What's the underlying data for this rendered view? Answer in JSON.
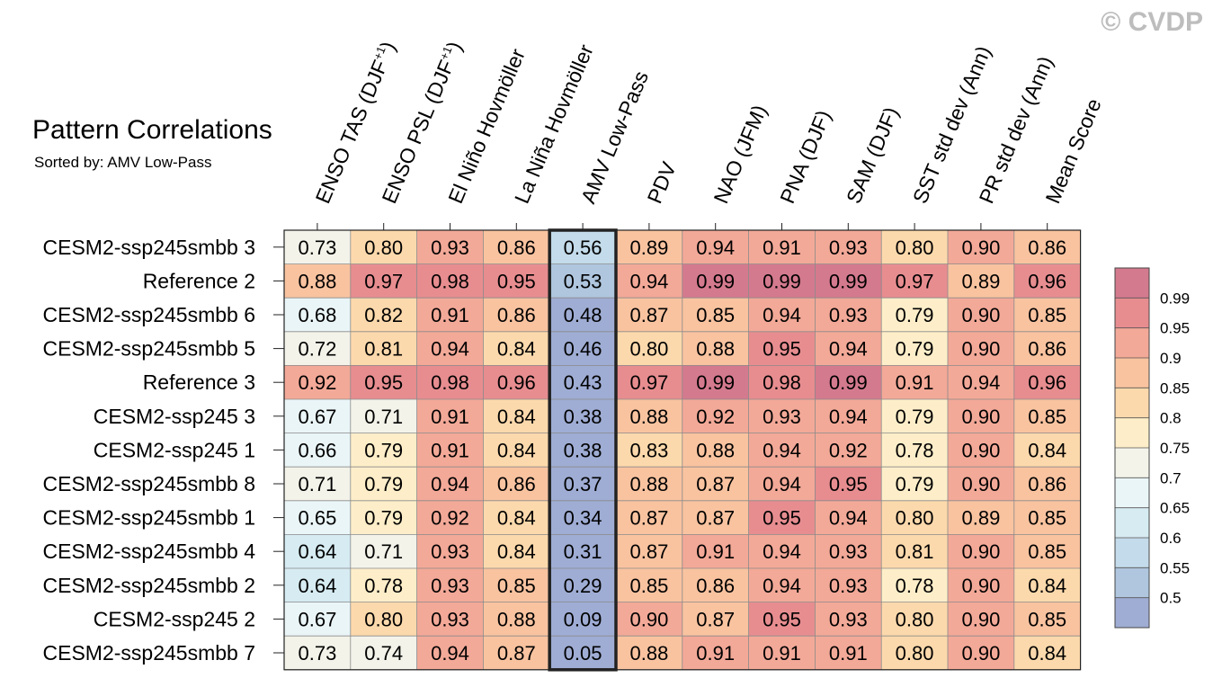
{
  "watermark": "© CVDP",
  "chart_data": {
    "type": "heatmap",
    "title": "Pattern Correlations",
    "subtitle": "Sorted by: AMV Low-Pass",
    "highlighted_column": "AMV Low-Pass",
    "columns": [
      {
        "label": "ENSO TAS (DJF",
        "sup": "+1",
        "close": ")"
      },
      {
        "label": "ENSO PSL (DJF",
        "sup": "+1",
        "close": ")"
      },
      {
        "label": "El Niño Hovmöller",
        "sup": "",
        "close": ""
      },
      {
        "label": "La Niña Hovmöller",
        "sup": "",
        "close": ""
      },
      {
        "label": "AMV Low-Pass",
        "sup": "",
        "close": ""
      },
      {
        "label": "PDV",
        "sup": "",
        "close": ""
      },
      {
        "label": "NAO (JFM)",
        "sup": "",
        "close": ""
      },
      {
        "label": "PNA (DJF)",
        "sup": "",
        "close": ""
      },
      {
        "label": "SAM (DJF)",
        "sup": "",
        "close": ""
      },
      {
        "label": "SST std dev (Ann)",
        "sup": "",
        "close": ""
      },
      {
        "label": "PR std dev (Ann)",
        "sup": "",
        "close": ""
      },
      {
        "label": "Mean Score",
        "sup": "",
        "close": ""
      }
    ],
    "rows": [
      "CESM2-ssp245smbb 3",
      "Reference 2",
      "CESM2-ssp245smbb 6",
      "CESM2-ssp245smbb 5",
      "Reference 3",
      "CESM2-ssp245 3",
      "CESM2-ssp245 1",
      "CESM2-ssp245smbb 8",
      "CESM2-ssp245smbb 1",
      "CESM2-ssp245smbb 4",
      "CESM2-ssp245smbb 2",
      "CESM2-ssp245 2",
      "CESM2-ssp245smbb 7"
    ],
    "values": [
      [
        0.73,
        0.8,
        0.93,
        0.86,
        0.56,
        0.89,
        0.94,
        0.91,
        0.93,
        0.8,
        0.9,
        0.86
      ],
      [
        0.88,
        0.97,
        0.98,
        0.95,
        0.53,
        0.94,
        0.99,
        0.99,
        0.99,
        0.97,
        0.89,
        0.96
      ],
      [
        0.68,
        0.82,
        0.91,
        0.86,
        0.48,
        0.87,
        0.85,
        0.94,
        0.93,
        0.79,
        0.9,
        0.85
      ],
      [
        0.72,
        0.81,
        0.94,
        0.84,
        0.46,
        0.8,
        0.88,
        0.95,
        0.94,
        0.79,
        0.9,
        0.86
      ],
      [
        0.92,
        0.95,
        0.98,
        0.96,
        0.43,
        0.97,
        0.99,
        0.98,
        0.99,
        0.91,
        0.94,
        0.96
      ],
      [
        0.67,
        0.71,
        0.91,
        0.84,
        0.38,
        0.88,
        0.92,
        0.93,
        0.94,
        0.79,
        0.9,
        0.85
      ],
      [
        0.66,
        0.79,
        0.91,
        0.84,
        0.38,
        0.83,
        0.88,
        0.94,
        0.92,
        0.78,
        0.9,
        0.84
      ],
      [
        0.71,
        0.79,
        0.94,
        0.86,
        0.37,
        0.88,
        0.87,
        0.94,
        0.95,
        0.79,
        0.9,
        0.86
      ],
      [
        0.65,
        0.79,
        0.92,
        0.84,
        0.34,
        0.87,
        0.87,
        0.95,
        0.94,
        0.8,
        0.89,
        0.85
      ],
      [
        0.64,
        0.71,
        0.93,
        0.84,
        0.31,
        0.87,
        0.91,
        0.94,
        0.93,
        0.81,
        0.9,
        0.85
      ],
      [
        0.64,
        0.78,
        0.93,
        0.85,
        0.29,
        0.85,
        0.86,
        0.94,
        0.93,
        0.78,
        0.9,
        0.84
      ],
      [
        0.67,
        0.8,
        0.93,
        0.88,
        0.09,
        0.9,
        0.87,
        0.95,
        0.93,
        0.8,
        0.9,
        0.85
      ],
      [
        0.73,
        0.74,
        0.94,
        0.87,
        0.05,
        0.88,
        0.91,
        0.91,
        0.91,
        0.8,
        0.9,
        0.84
      ]
    ],
    "colorbar": {
      "boundaries": [
        0.5,
        0.55,
        0.6,
        0.65,
        0.7,
        0.75,
        0.8,
        0.85,
        0.9,
        0.95,
        0.99
      ],
      "labels": [
        "0.5",
        "0.55",
        "0.6",
        "0.65",
        "0.7",
        "0.75",
        "0.8",
        "0.85",
        "0.9",
        "0.95",
        "0.99"
      ],
      "colors": [
        "#9fadd4",
        "#afc6de",
        "#c3dbea",
        "#d6ebf2",
        "#eaf5f7",
        "#f3f3ea",
        "#fdeec9",
        "#fcd9ac",
        "#f9c3a0",
        "#f3a998",
        "#e78d90",
        "#d47a8e"
      ]
    }
  }
}
